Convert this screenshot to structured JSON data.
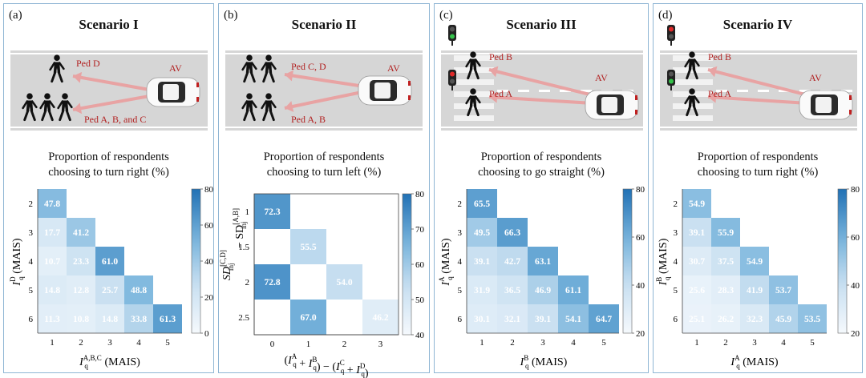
{
  "panels": [
    {
      "label": "(a)",
      "title": "Scenario I",
      "subtitle1": "Proportion of respondents",
      "subtitle2": "choosing to turn right (%)",
      "scene": {
        "type": "plain",
        "av": "AV",
        "pedUpper": "Ped D",
        "pedLower": "Ped A, B, and C"
      },
      "ylabel_main": "I",
      "ylabel_sup": "D",
      "ylabel_sub": "q",
      "ylabel_unit": " (MAIS)",
      "xlabel_main": "I",
      "xlabel_sup": "A,B,C",
      "xlabel_sub": "q",
      "xlabel_unit": " (MAIS)",
      "colorbar": {
        "min": 0,
        "max": 80,
        "ticks": [
          "0",
          "20",
          "40",
          "60",
          "80"
        ]
      }
    },
    {
      "label": "(b)",
      "title": "Scenario II",
      "subtitle1": "Proportion of respondents",
      "subtitle2": "choosing to turn left (%)",
      "scene": {
        "type": "plain",
        "av": "AV",
        "pedUpper": "Ped C, D",
        "pedLower": "Ped A, B"
      },
      "ylabel_top": "SD",
      "ylabel_top_sup": "[C,D]",
      "ylabel_top_sub": "inj",
      "ylabel_bot": "− SD",
      "ylabel_bot_sup": "[A,B]",
      "ylabel_bot_sub": "inj",
      "xlabel_text": "(I",
      "colorbar": {
        "min": 40,
        "max": 80,
        "ticks": [
          "40",
          "50",
          "60",
          "70",
          "80"
        ]
      }
    },
    {
      "label": "(c)",
      "title": "Scenario III",
      "subtitle1": "Proportion of respondents",
      "subtitle2": "choosing to go straight (%)",
      "scene": {
        "type": "crossing",
        "av": "AV",
        "pedUpper": "Ped B",
        "pedLower": "Ped A",
        "lightTop": "green",
        "lightBottom": "red"
      },
      "ylabel_main": "I",
      "ylabel_sup": "A",
      "ylabel_sub": "q",
      "ylabel_unit": " (MAIS)",
      "xlabel_main": "I",
      "xlabel_sup": "B",
      "xlabel_sub": "q",
      "xlabel_unit": " (MAIS)",
      "colorbar": {
        "min": 20,
        "max": 80,
        "ticks": [
          "20",
          "40",
          "60",
          "80"
        ]
      }
    },
    {
      "label": "(d)",
      "title": "Scenario IV",
      "subtitle1": "Proportion of respondents",
      "subtitle2": "choosing to turn right (%)",
      "scene": {
        "type": "crossing",
        "av": "AV",
        "pedUpper": "Ped B",
        "pedLower": "Ped A",
        "lightTop": "red",
        "lightBottom": "green"
      },
      "ylabel_main": "I",
      "ylabel_sup": "B",
      "ylabel_sub": "q",
      "ylabel_unit": " (MAIS)",
      "xlabel_main": "I",
      "xlabel_sup": "A",
      "xlabel_sub": "q",
      "xlabel_unit": " (MAIS)",
      "colorbar": {
        "min": 20,
        "max": 80,
        "ticks": [
          "20",
          "40",
          "60",
          "80"
        ]
      }
    }
  ],
  "chart_data": [
    {
      "type": "heatmap",
      "title": "Proportion of respondents choosing to turn right (%)",
      "xlabel": "I_q^{A,B,C} (MAIS)",
      "ylabel": "I_q^{D} (MAIS)",
      "x_categories": [
        "1",
        "2",
        "3",
        "4",
        "5"
      ],
      "y_categories": [
        "2",
        "3",
        "4",
        "5",
        "6"
      ],
      "cells": [
        [
          47.8,
          null,
          null,
          null,
          null
        ],
        [
          17.7,
          41.2,
          null,
          null,
          null
        ],
        [
          10.7,
          23.3,
          61.0,
          null,
          null
        ],
        [
          14.8,
          12.8,
          25.7,
          48.8,
          null
        ],
        [
          11.3,
          10.8,
          14.8,
          33.8,
          61.3
        ]
      ],
      "colorbar_range": [
        0,
        80
      ]
    },
    {
      "type": "heatmap",
      "title": "Proportion of respondents choosing to turn left (%)",
      "xlabel": "(I_q^A + I_q^B) − (I_q^C + I_q^D)",
      "ylabel": "SD_inj^{[C,D]} − SD_inj^{[A,B]}",
      "x_categories": [
        "0",
        "1",
        "2",
        "3"
      ],
      "y_categories": [
        "1",
        "1.5",
        "2",
        "2.5"
      ],
      "cells": [
        [
          72.3,
          null,
          null,
          null
        ],
        [
          null,
          55.5,
          null,
          null
        ],
        [
          72.8,
          null,
          54.0,
          null
        ],
        [
          null,
          67.0,
          null,
          46.2
        ]
      ],
      "colorbar_range": [
        40,
        80
      ]
    },
    {
      "type": "heatmap",
      "title": "Proportion of respondents choosing to go straight (%)",
      "xlabel": "I_q^B (MAIS)",
      "ylabel": "I_q^A (MAIS)",
      "x_categories": [
        "1",
        "2",
        "3",
        "4",
        "5"
      ],
      "y_categories": [
        "2",
        "3",
        "4",
        "5",
        "6"
      ],
      "cells": [
        [
          65.5,
          null,
          null,
          null,
          null
        ],
        [
          49.5,
          66.3,
          null,
          null,
          null
        ],
        [
          39.1,
          42.7,
          63.1,
          null,
          null
        ],
        [
          31.9,
          36.5,
          46.9,
          61.1,
          null
        ],
        [
          30.1,
          32.1,
          39.1,
          54.1,
          64.7
        ]
      ],
      "colorbar_range": [
        20,
        80
      ]
    },
    {
      "type": "heatmap",
      "title": "Proportion of respondents choosing to turn right (%)",
      "xlabel": "I_q^A (MAIS)",
      "ylabel": "I_q^B (MAIS)",
      "x_categories": [
        "1",
        "2",
        "3",
        "4",
        "5"
      ],
      "y_categories": [
        "2",
        "3",
        "4",
        "5",
        "6"
      ],
      "cells": [
        [
          54.9,
          null,
          null,
          null,
          null
        ],
        [
          39.1,
          55.9,
          null,
          null,
          null
        ],
        [
          30.7,
          37.5,
          54.9,
          null,
          null
        ],
        [
          25.6,
          28.3,
          41.9,
          53.7,
          null
        ],
        [
          25.1,
          26.2,
          32.3,
          45.9,
          53.5
        ]
      ],
      "colorbar_range": [
        20,
        80
      ]
    }
  ]
}
